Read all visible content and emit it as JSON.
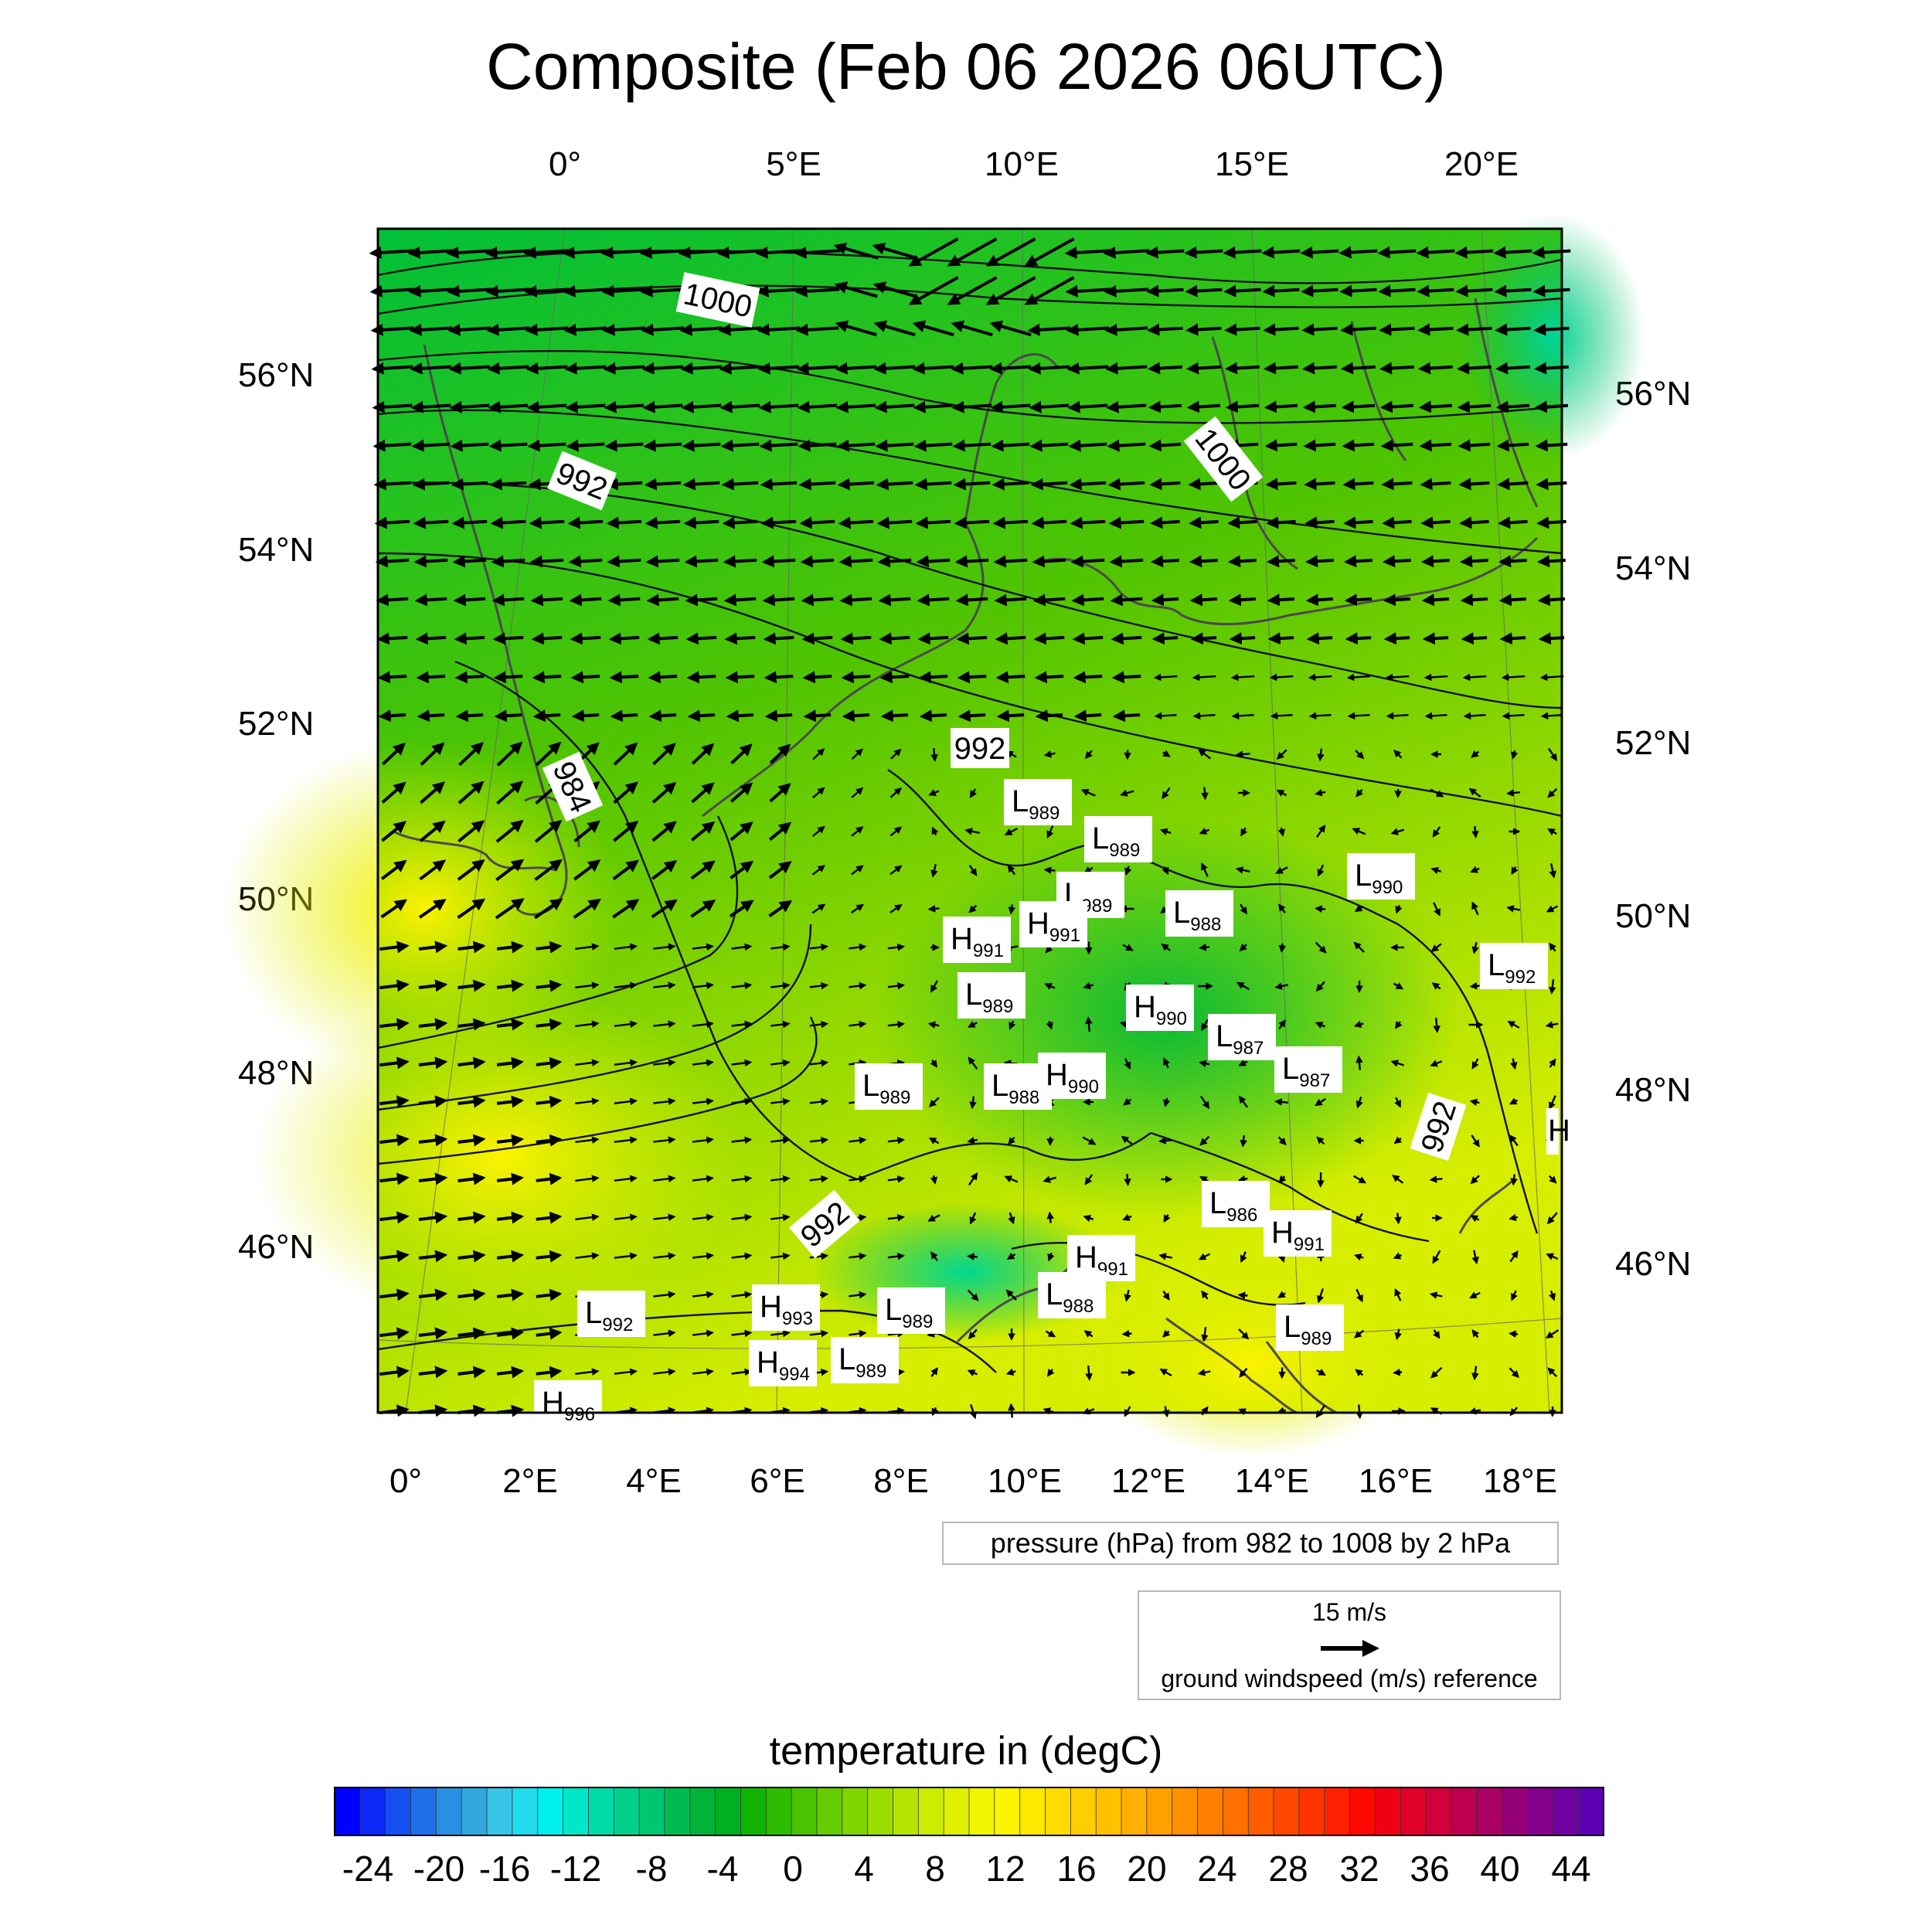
{
  "title": "Composite (Feb 06 2026 06UTC)",
  "top_lon_labels": [
    "0°",
    "5°E",
    "10°E",
    "15°E",
    "20°E"
  ],
  "bottom_lon_labels": [
    "0°",
    "2°E",
    "4°E",
    "6°E",
    "8°E",
    "10°E",
    "12°E",
    "14°E",
    "16°E",
    "18°E"
  ],
  "left_lat_labels": [
    "56°N",
    "54°N",
    "52°N",
    "50°N",
    "48°N",
    "46°N"
  ],
  "right_lat_labels": [
    "56°N",
    "54°N",
    "52°N",
    "50°N",
    "48°N",
    "46°N"
  ],
  "contour_labels": [
    "1000",
    "1000",
    "992",
    "992",
    "984",
    "992",
    "992"
  ],
  "pressure_centers": [
    {
      "type": "L",
      "value": "989"
    },
    {
      "type": "L",
      "value": "989"
    },
    {
      "type": "L",
      "value": "989"
    },
    {
      "type": "H",
      "value": "991"
    },
    {
      "type": "H",
      "value": "991"
    },
    {
      "type": "L",
      "value": "988"
    },
    {
      "type": "L",
      "value": "990"
    },
    {
      "type": "L",
      "value": "992"
    },
    {
      "type": "L",
      "value": "989"
    },
    {
      "type": "H",
      "value": "990"
    },
    {
      "type": "L",
      "value": "987"
    },
    {
      "type": "L",
      "value": "987"
    },
    {
      "type": "L",
      "value": "989"
    },
    {
      "type": "L",
      "value": "988"
    },
    {
      "type": "H",
      "value": "990"
    },
    {
      "type": "L",
      "value": "986"
    },
    {
      "type": "H",
      "value": "991"
    },
    {
      "type": "H",
      "value": "991"
    },
    {
      "type": "L",
      "value": "988"
    },
    {
      "type": "L",
      "value": "992"
    },
    {
      "type": "H",
      "value": "993"
    },
    {
      "type": "L",
      "value": "989"
    },
    {
      "type": "H",
      "value": "994"
    },
    {
      "type": "L",
      "value": "989"
    },
    {
      "type": "L",
      "value": "989"
    },
    {
      "type": "H",
      "value": "996"
    },
    {
      "type": "H",
      "value": ""
    }
  ],
  "pressure_legend": "pressure (hPa) from 982 to 1008 by 2 hPa",
  "wind_reference": {
    "speed_label": "15 m/s",
    "label": "ground windspeed (m/s) reference"
  },
  "colorbar": {
    "title": "temperature in (degC)",
    "ticks": [
      "-24",
      "-20",
      "-16",
      "-12",
      "-8",
      "-4",
      "0",
      "4",
      "8",
      "12",
      "16",
      "20",
      "24",
      "28",
      "32",
      "36",
      "40",
      "44"
    ],
    "colors": [
      "#0000ff",
      "#0a28f7",
      "#1450f0",
      "#1e6ee8",
      "#2890e2",
      "#30a8de",
      "#38c4e4",
      "#20dcec",
      "#00f0f0",
      "#00e8c8",
      "#00dca8",
      "#00d08c",
      "#00c670",
      "#00bc50",
      "#00b438",
      "#00b020",
      "#10b400",
      "#2cbc00",
      "#48c400",
      "#64cc00",
      "#80d400",
      "#9cdc00",
      "#b4e400",
      "#ccec00",
      "#e0f000",
      "#f0f400",
      "#fcf400",
      "#ffe800",
      "#ffdc00",
      "#ffce00",
      "#ffc000",
      "#ffb000",
      "#ffa000",
      "#ff9000",
      "#ff8000",
      "#ff7000",
      "#ff5c00",
      "#ff4800",
      "#ff3400",
      "#ff2000",
      "#ff0800",
      "#f00014",
      "#e00028",
      "#d0003c",
      "#be0050",
      "#aa0064",
      "#960078",
      "#82008c",
      "#7000a0",
      "#5e00b4"
    ]
  },
  "map_colors": {
    "cold": "#00d880",
    "cool": "#00c038",
    "mild": "#50c400",
    "warm": "#d8ee00",
    "hot": "#fcf200"
  }
}
